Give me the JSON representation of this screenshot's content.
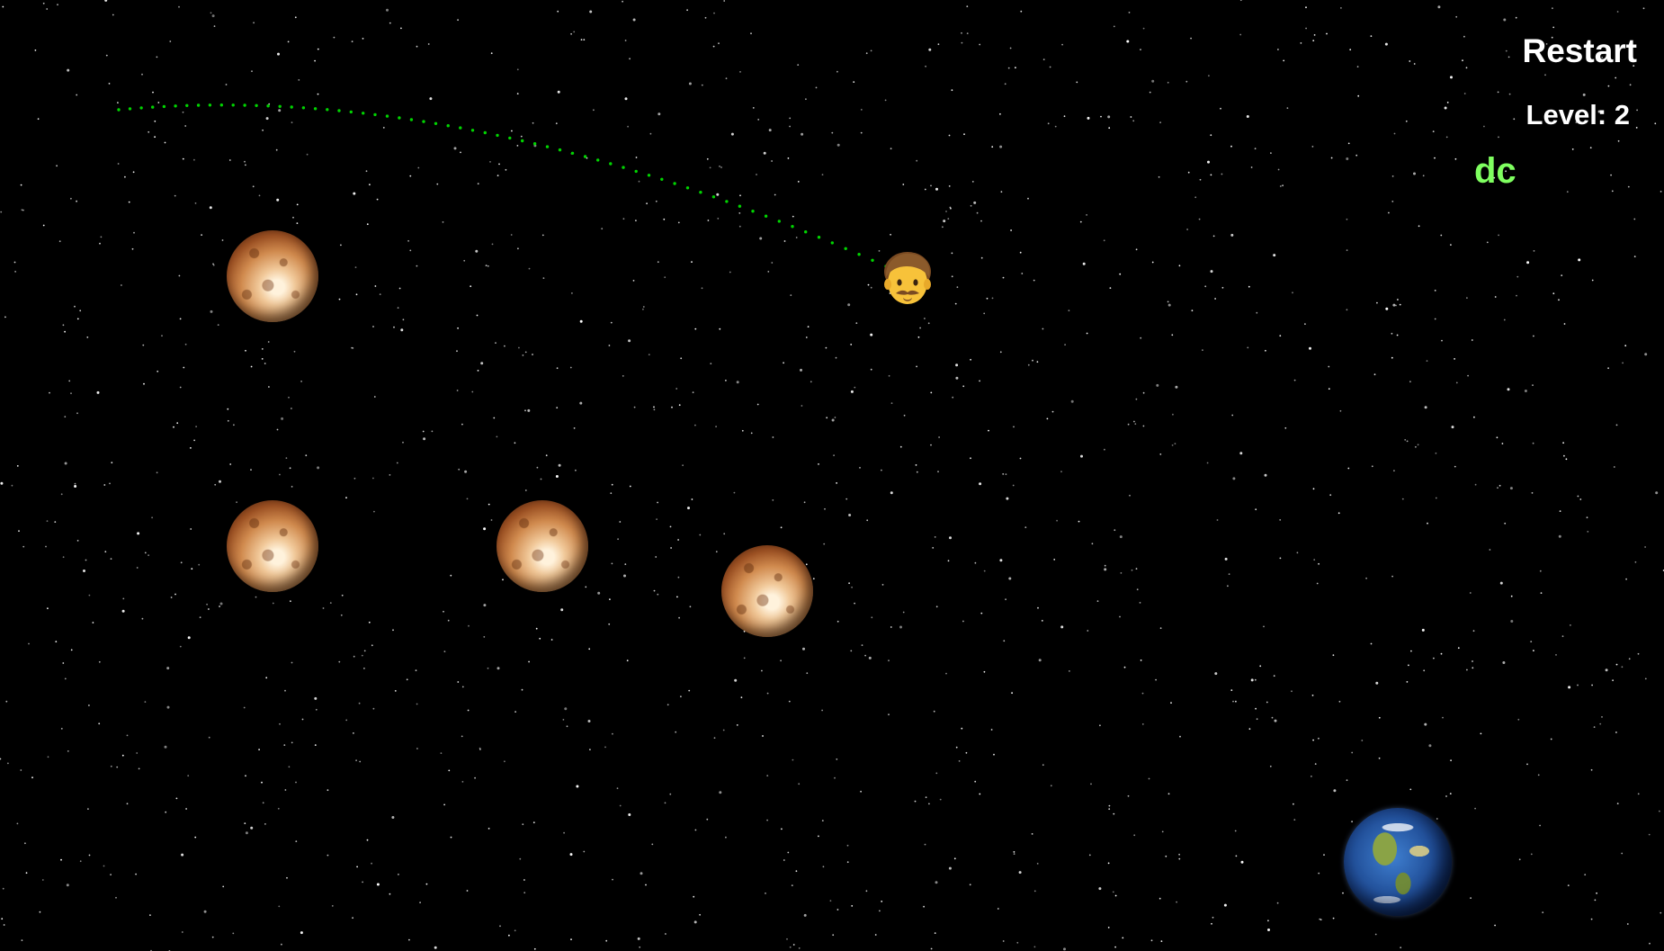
{
  "hud": {
    "restart_label": "Restart",
    "level_label": "Level: 2",
    "status_text": "dc"
  },
  "colors": {
    "background": "#000000",
    "hud_text": "#ffffff",
    "status_text": "#7fff60",
    "trajectory": "#00d400"
  },
  "scene": {
    "player_icon": "man-astronaut-emoji-icon",
    "obstacle_icon": "venus-planet-icon",
    "goal_icon": "earth-planet-icon",
    "obstacle_count": 4
  }
}
